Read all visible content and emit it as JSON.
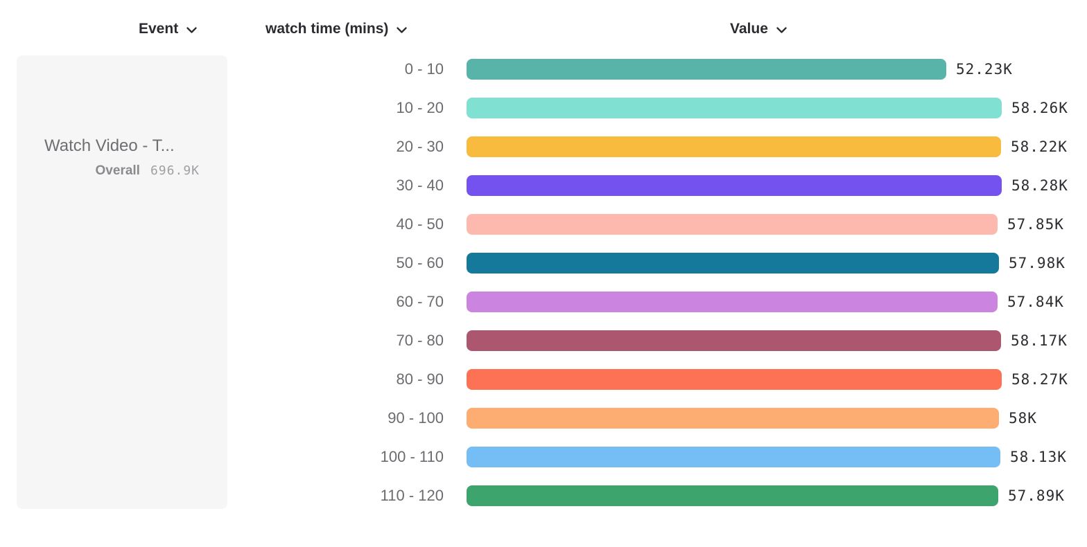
{
  "header": {
    "event_label": "Event",
    "breakdown_label": "watch time (mins)",
    "value_label": "Value"
  },
  "event_card": {
    "event_name": "Watch Video - T...",
    "overall_label": "Overall",
    "overall_value": "696.9K"
  },
  "chart_data": {
    "type": "bar",
    "orientation": "horizontal",
    "title": "",
    "xlabel": "Value",
    "ylabel": "watch time (mins)",
    "legend": false,
    "grid": false,
    "categories": [
      "0 - 10",
      "10 - 20",
      "20 - 30",
      "30 - 40",
      "40 - 50",
      "50 - 60",
      "60 - 70",
      "70 - 80",
      "80 - 90",
      "90 - 100",
      "100 - 110",
      "110 - 120"
    ],
    "values": [
      52230,
      58260,
      58220,
      58280,
      57850,
      57980,
      57840,
      58170,
      58270,
      58000,
      58130,
      57890
    ],
    "value_labels": [
      "52.23K",
      "58.26K",
      "58.22K",
      "58.28K",
      "57.85K",
      "57.98K",
      "57.84K",
      "58.17K",
      "58.27K",
      "58K",
      "58.13K",
      "57.89K"
    ],
    "bar_colors": [
      "#58b3a9",
      "#80e0d1",
      "#f8bb3d",
      "#7452ef",
      "#fdb9ae",
      "#15799c",
      "#cb84e0",
      "#ad5670",
      "#fd7155",
      "#fdad72",
      "#74bef5",
      "#3ca46c"
    ],
    "xlim": [
      0,
      58280
    ]
  },
  "icons": {
    "chevron_down": "chevron-down"
  }
}
